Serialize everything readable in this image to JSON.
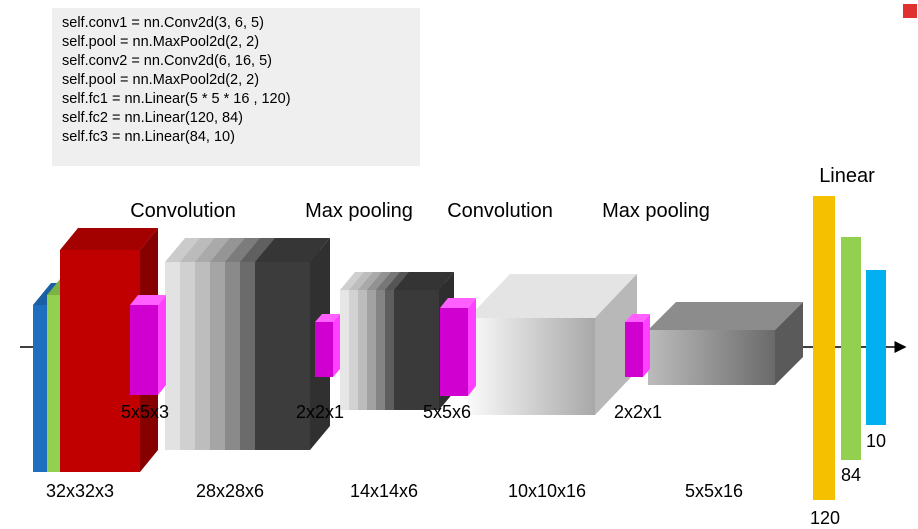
{
  "code": [
    "self.conv1 = nn.Conv2d(3, 6, 5)",
    "self.pool = nn.MaxPool2d(2, 2)",
    "self.conv2 = nn.Conv2d(6, 16, 5)",
    "self.pool = nn.MaxPool2d(2, 2)",
    "self.fc1 = nn.Linear(5 * 5 * 16 , 120)",
    "self.fc2 = nn.Linear(120, 84)",
    "self.fc3 = nn.Linear(84, 10)"
  ],
  "stages": [
    "Convolution",
    "Max pooling",
    "Convolution",
    "Max pooling",
    "Linear"
  ],
  "kernels": [
    "5x5x3",
    "2x2x1",
    "5x5x6",
    "2x2x1"
  ],
  "sizes": [
    "32x32x3",
    "28x28x6",
    "14x14x6",
    "10x10x16",
    "5x5x16"
  ],
  "fc": [
    "120",
    "84",
    "10"
  ]
}
